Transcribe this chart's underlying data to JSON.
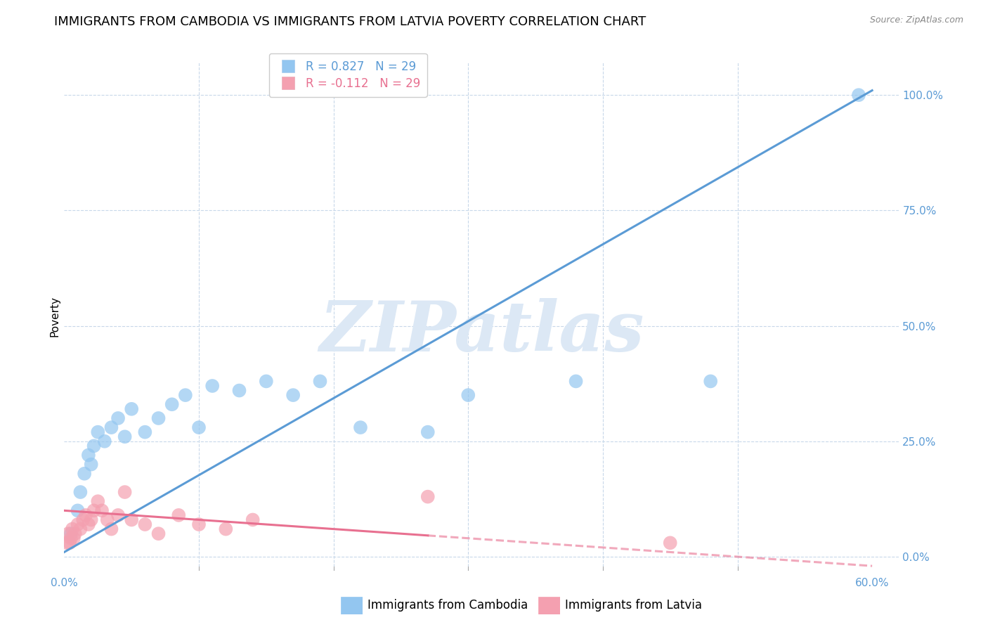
{
  "title": "IMMIGRANTS FROM CAMBODIA VS IMMIGRANTS FROM LATVIA POVERTY CORRELATION CHART",
  "source": "Source: ZipAtlas.com",
  "ylabel": "Poverty",
  "R_cambodia": 0.827,
  "N_cambodia": 29,
  "R_latvia": -0.112,
  "N_latvia": 29,
  "color_cambodia": "#93c6f0",
  "color_latvia": "#f4a0b0",
  "color_blue_text": "#5b9bd5",
  "color_pink_text": "#e87090",
  "color_line_cambodia": "#5b9bd5",
  "color_line_latvia": "#e87090",
  "watermark_text": "ZIPatlas",
  "watermark_color": "#dce8f5",
  "cambodia_scatter_x": [
    0.5,
    1.0,
    1.2,
    1.5,
    1.8,
    2.0,
    2.2,
    2.5,
    3.0,
    3.5,
    4.0,
    4.5,
    5.0,
    6.0,
    7.0,
    8.0,
    9.0,
    10.0,
    11.0,
    13.0,
    15.0,
    17.0,
    19.0,
    22.0,
    27.0,
    30.0,
    38.0,
    48.0,
    59.0
  ],
  "cambodia_scatter_y": [
    5,
    10,
    14,
    18,
    22,
    20,
    24,
    27,
    25,
    28,
    30,
    26,
    32,
    27,
    30,
    33,
    35,
    28,
    37,
    36,
    38,
    35,
    38,
    28,
    27,
    35,
    38,
    38,
    100
  ],
  "latvia_scatter_x": [
    0.2,
    0.3,
    0.4,
    0.5,
    0.6,
    0.7,
    0.8,
    1.0,
    1.2,
    1.4,
    1.6,
    1.8,
    2.0,
    2.2,
    2.5,
    2.8,
    3.2,
    3.5,
    4.0,
    4.5,
    5.0,
    6.0,
    7.0,
    8.5,
    10.0,
    12.0,
    14.0,
    27.0,
    45.0
  ],
  "latvia_scatter_y": [
    3,
    5,
    3,
    4,
    6,
    4,
    5,
    7,
    6,
    8,
    9,
    7,
    8,
    10,
    12,
    10,
    8,
    6,
    9,
    14,
    8,
    7,
    5,
    9,
    7,
    6,
    8,
    13,
    3
  ],
  "xlim": [
    0,
    62
  ],
  "ylim": [
    -3,
    107
  ],
  "xtick_show": [
    0,
    60
  ],
  "xtick_labels": [
    "0.0%",
    "60.0%"
  ],
  "xtick_minor": [
    10,
    20,
    30,
    40,
    50
  ],
  "ytick_values": [
    0,
    25,
    50,
    75,
    100
  ],
  "ytick_labels": [
    "0.0%",
    "25.0%",
    "50.0%",
    "75.0%",
    "100.0%"
  ],
  "trend_cambodia_x0": 0,
  "trend_cambodia_y0": 1,
  "trend_cambodia_x1": 60,
  "trend_cambodia_y1": 101,
  "trend_latvia_x0": 0,
  "trend_latvia_y0": 10,
  "trend_latvia_x1": 60,
  "trend_latvia_y1": -2,
  "trend_latvia_solid_end_x": 27,
  "background_color": "#ffffff",
  "grid_color": "#c8d8ea",
  "title_fontsize": 13,
  "axis_label_fontsize": 11,
  "tick_fontsize": 11,
  "legend_fontsize": 12,
  "legend_label1": "R = 0.827   N = 29",
  "legend_label2": "R = -0.112   N = 29",
  "bottom_legend_label1": "Immigrants from Cambodia",
  "bottom_legend_label2": "Immigrants from Latvia"
}
